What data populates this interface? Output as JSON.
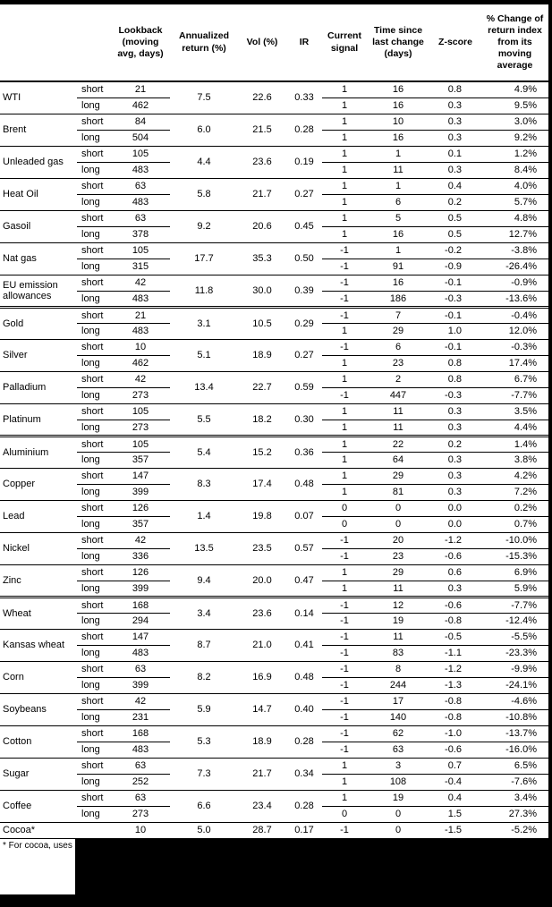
{
  "table": {
    "column_headers": {
      "commodity": "",
      "horizon": "",
      "lookback": "Lookback (moving avg, days)",
      "annualized_return": "Annualized return (%)",
      "vol": "Vol (%)",
      "ir": "IR",
      "current_signal": "Current signal",
      "time_since_last_change": "Time since last change (days)",
      "z_score": "Z-score",
      "pct_change_from_ma": "% Change of return index from its moving average"
    },
    "commodities": [
      {
        "name": "WTI",
        "group_start": false,
        "annualized_return": "7.5",
        "vol": "22.6",
        "ir": "0.33",
        "rows": [
          {
            "horizon": "short",
            "lookback": "21",
            "signal": "1",
            "time_since": "16",
            "z_score": "0.8",
            "pct_change": "4.9%"
          },
          {
            "horizon": "long",
            "lookback": "462",
            "signal": "1",
            "time_since": "16",
            "z_score": "0.3",
            "pct_change": "9.5%"
          }
        ]
      },
      {
        "name": "Brent",
        "group_start": false,
        "annualized_return": "6.0",
        "vol": "21.5",
        "ir": "0.28",
        "rows": [
          {
            "horizon": "short",
            "lookback": "84",
            "signal": "1",
            "time_since": "10",
            "z_score": "0.3",
            "pct_change": "3.0%"
          },
          {
            "horizon": "long",
            "lookback": "504",
            "signal": "1",
            "time_since": "16",
            "z_score": "0.3",
            "pct_change": "9.2%"
          }
        ]
      },
      {
        "name": "Unleaded gas",
        "group_start": false,
        "annualized_return": "4.4",
        "vol": "23.6",
        "ir": "0.19",
        "rows": [
          {
            "horizon": "short",
            "lookback": "105",
            "signal": "1",
            "time_since": "1",
            "z_score": "0.1",
            "pct_change": "1.2%"
          },
          {
            "horizon": "long",
            "lookback": "483",
            "signal": "1",
            "time_since": "11",
            "z_score": "0.3",
            "pct_change": "8.4%"
          }
        ]
      },
      {
        "name": "Heat Oil",
        "group_start": false,
        "annualized_return": "5.8",
        "vol": "21.7",
        "ir": "0.27",
        "rows": [
          {
            "horizon": "short",
            "lookback": "63",
            "signal": "1",
            "time_since": "1",
            "z_score": "0.4",
            "pct_change": "4.0%"
          },
          {
            "horizon": "long",
            "lookback": "483",
            "signal": "1",
            "time_since": "6",
            "z_score": "0.2",
            "pct_change": "5.7%"
          }
        ]
      },
      {
        "name": "Gasoil",
        "group_start": false,
        "annualized_return": "9.2",
        "vol": "20.6",
        "ir": "0.45",
        "rows": [
          {
            "horizon": "short",
            "lookback": "63",
            "signal": "1",
            "time_since": "5",
            "z_score": "0.5",
            "pct_change": "4.8%"
          },
          {
            "horizon": "long",
            "lookback": "378",
            "signal": "1",
            "time_since": "16",
            "z_score": "0.5",
            "pct_change": "12.7%"
          }
        ]
      },
      {
        "name": "Nat gas",
        "group_start": false,
        "annualized_return": "17.7",
        "vol": "35.3",
        "ir": "0.50",
        "rows": [
          {
            "horizon": "short",
            "lookback": "105",
            "signal": "-1",
            "time_since": "1",
            "z_score": "-0.2",
            "pct_change": "-3.8%"
          },
          {
            "horizon": "long",
            "lookback": "315",
            "signal": "-1",
            "time_since": "91",
            "z_score": "-0.9",
            "pct_change": "-26.4%"
          }
        ]
      },
      {
        "name": "EU emission allowances",
        "group_start": false,
        "annualized_return": "11.8",
        "vol": "30.0",
        "ir": "0.39",
        "rows": [
          {
            "horizon": "short",
            "lookback": "42",
            "signal": "-1",
            "time_since": "16",
            "z_score": "-0.1",
            "pct_change": "-0.9%"
          },
          {
            "horizon": "long",
            "lookback": "483",
            "signal": "-1",
            "time_since": "186",
            "z_score": "-0.3",
            "pct_change": "-13.6%"
          }
        ]
      },
      {
        "name": "Gold",
        "group_start": true,
        "annualized_return": "3.1",
        "vol": "10.5",
        "ir": "0.29",
        "rows": [
          {
            "horizon": "short",
            "lookback": "21",
            "signal": "-1",
            "time_since": "7",
            "z_score": "-0.1",
            "pct_change": "-0.4%"
          },
          {
            "horizon": "long",
            "lookback": "483",
            "signal": "1",
            "time_since": "29",
            "z_score": "1.0",
            "pct_change": "12.0%"
          }
        ]
      },
      {
        "name": "Silver",
        "group_start": false,
        "annualized_return": "5.1",
        "vol": "18.9",
        "ir": "0.27",
        "rows": [
          {
            "horizon": "short",
            "lookback": "10",
            "signal": "-1",
            "time_since": "6",
            "z_score": "-0.1",
            "pct_change": "-0.3%"
          },
          {
            "horizon": "long",
            "lookback": "462",
            "signal": "1",
            "time_since": "23",
            "z_score": "0.8",
            "pct_change": "17.4%"
          }
        ]
      },
      {
        "name": "Palladium",
        "group_start": false,
        "annualized_return": "13.4",
        "vol": "22.7",
        "ir": "0.59",
        "rows": [
          {
            "horizon": "short",
            "lookback": "42",
            "signal": "1",
            "time_since": "2",
            "z_score": "0.8",
            "pct_change": "6.7%"
          },
          {
            "horizon": "long",
            "lookback": "273",
            "signal": "-1",
            "time_since": "447",
            "z_score": "-0.3",
            "pct_change": "-7.7%"
          }
        ]
      },
      {
        "name": "Platinum",
        "group_start": false,
        "annualized_return": "5.5",
        "vol": "18.2",
        "ir": "0.30",
        "rows": [
          {
            "horizon": "short",
            "lookback": "105",
            "signal": "1",
            "time_since": "11",
            "z_score": "0.3",
            "pct_change": "3.5%"
          },
          {
            "horizon": "long",
            "lookback": "273",
            "signal": "1",
            "time_since": "11",
            "z_score": "0.3",
            "pct_change": "4.4%"
          }
        ]
      },
      {
        "name": "Aluminium",
        "group_start": true,
        "annualized_return": "5.4",
        "vol": "15.2",
        "ir": "0.36",
        "rows": [
          {
            "horizon": "short",
            "lookback": "105",
            "signal": "1",
            "time_since": "22",
            "z_score": "0.2",
            "pct_change": "1.4%"
          },
          {
            "horizon": "long",
            "lookback": "357",
            "signal": "1",
            "time_since": "64",
            "z_score": "0.3",
            "pct_change": "3.8%"
          }
        ]
      },
      {
        "name": "Copper",
        "group_start": false,
        "annualized_return": "8.3",
        "vol": "17.4",
        "ir": "0.48",
        "rows": [
          {
            "horizon": "short",
            "lookback": "147",
            "signal": "1",
            "time_since": "29",
            "z_score": "0.3",
            "pct_change": "4.2%"
          },
          {
            "horizon": "long",
            "lookback": "399",
            "signal": "1",
            "time_since": "81",
            "z_score": "0.3",
            "pct_change": "7.2%"
          }
        ]
      },
      {
        "name": "Lead",
        "group_start": false,
        "annualized_return": "1.4",
        "vol": "19.8",
        "ir": "0.07",
        "rows": [
          {
            "horizon": "short",
            "lookback": "126",
            "signal": "0",
            "time_since": "0",
            "z_score": "0.0",
            "pct_change": "0.2%"
          },
          {
            "horizon": "long",
            "lookback": "357",
            "signal": "0",
            "time_since": "0",
            "z_score": "0.0",
            "pct_change": "0.7%"
          }
        ]
      },
      {
        "name": "Nickel",
        "group_start": false,
        "annualized_return": "13.5",
        "vol": "23.5",
        "ir": "0.57",
        "rows": [
          {
            "horizon": "short",
            "lookback": "42",
            "signal": "-1",
            "time_since": "20",
            "z_score": "-1.2",
            "pct_change": "-10.0%"
          },
          {
            "horizon": "long",
            "lookback": "336",
            "signal": "-1",
            "time_since": "23",
            "z_score": "-0.6",
            "pct_change": "-15.3%"
          }
        ]
      },
      {
        "name": "Zinc",
        "group_start": false,
        "annualized_return": "9.4",
        "vol": "20.0",
        "ir": "0.47",
        "rows": [
          {
            "horizon": "short",
            "lookback": "126",
            "signal": "1",
            "time_since": "29",
            "z_score": "0.6",
            "pct_change": "6.9%"
          },
          {
            "horizon": "long",
            "lookback": "399",
            "signal": "1",
            "time_since": "11",
            "z_score": "0.3",
            "pct_change": "5.9%"
          }
        ]
      },
      {
        "name": "Wheat",
        "group_start": true,
        "annualized_return": "3.4",
        "vol": "23.6",
        "ir": "0.14",
        "rows": [
          {
            "horizon": "short",
            "lookback": "168",
            "signal": "-1",
            "time_since": "12",
            "z_score": "-0.6",
            "pct_change": "-7.7%"
          },
          {
            "horizon": "long",
            "lookback": "294",
            "signal": "-1",
            "time_since": "19",
            "z_score": "-0.8",
            "pct_change": "-12.4%"
          }
        ]
      },
      {
        "name": "Kansas wheat",
        "group_start": false,
        "annualized_return": "8.7",
        "vol": "21.0",
        "ir": "0.41",
        "rows": [
          {
            "horizon": "short",
            "lookback": "147",
            "signal": "-1",
            "time_since": "11",
            "z_score": "-0.5",
            "pct_change": "-5.5%"
          },
          {
            "horizon": "long",
            "lookback": "483",
            "signal": "-1",
            "time_since": "83",
            "z_score": "-1.1",
            "pct_change": "-23.3%"
          }
        ]
      },
      {
        "name": "Corn",
        "group_start": false,
        "annualized_return": "8.2",
        "vol": "16.9",
        "ir": "0.48",
        "rows": [
          {
            "horizon": "short",
            "lookback": "63",
            "signal": "-1",
            "time_since": "8",
            "z_score": "-1.2",
            "pct_change": "-9.9%"
          },
          {
            "horizon": "long",
            "lookback": "399",
            "signal": "-1",
            "time_since": "244",
            "z_score": "-1.3",
            "pct_change": "-24.1%"
          }
        ]
      },
      {
        "name": "Soybeans",
        "group_start": false,
        "annualized_return": "5.9",
        "vol": "14.7",
        "ir": "0.40",
        "rows": [
          {
            "horizon": "short",
            "lookback": "42",
            "signal": "-1",
            "time_since": "17",
            "z_score": "-0.8",
            "pct_change": "-4.6%"
          },
          {
            "horizon": "long",
            "lookback": "231",
            "signal": "-1",
            "time_since": "140",
            "z_score": "-0.8",
            "pct_change": "-10.8%"
          }
        ]
      },
      {
        "name": "Cotton",
        "group_start": false,
        "annualized_return": "5.3",
        "vol": "18.9",
        "ir": "0.28",
        "rows": [
          {
            "horizon": "short",
            "lookback": "168",
            "signal": "-1",
            "time_since": "62",
            "z_score": "-1.0",
            "pct_change": "-13.7%"
          },
          {
            "horizon": "long",
            "lookback": "483",
            "signal": "-1",
            "time_since": "63",
            "z_score": "-0.6",
            "pct_change": "-16.0%"
          }
        ]
      },
      {
        "name": "Sugar",
        "group_start": false,
        "annualized_return": "7.3",
        "vol": "21.7",
        "ir": "0.34",
        "rows": [
          {
            "horizon": "short",
            "lookback": "63",
            "signal": "1",
            "time_since": "3",
            "z_score": "0.7",
            "pct_change": "6.5%"
          },
          {
            "horizon": "long",
            "lookback": "252",
            "signal": "1",
            "time_since": "108",
            "z_score": "-0.4",
            "pct_change": "-7.6%"
          }
        ]
      },
      {
        "name": "Coffee",
        "group_start": false,
        "annualized_return": "6.6",
        "vol": "23.4",
        "ir": "0.28",
        "rows": [
          {
            "horizon": "short",
            "lookback": "63",
            "signal": "1",
            "time_since": "19",
            "z_score": "0.4",
            "pct_change": "3.4%"
          },
          {
            "horizon": "long",
            "lookback": "273",
            "signal": "0",
            "time_since": "0",
            "z_score": "1.5",
            "pct_change": "27.3%"
          }
        ]
      },
      {
        "name": "Cocoa*",
        "group_start": false,
        "annualized_return": "5.0",
        "vol": "28.7",
        "ir": "0.17",
        "rows": [
          {
            "horizon": "",
            "lookback": "10",
            "signal": "-1",
            "time_since": "0",
            "z_score": "-1.5",
            "pct_change": "-5.2%"
          }
        ]
      }
    ]
  },
  "footer": {
    "footnote": "* For cocoa, uses"
  }
}
